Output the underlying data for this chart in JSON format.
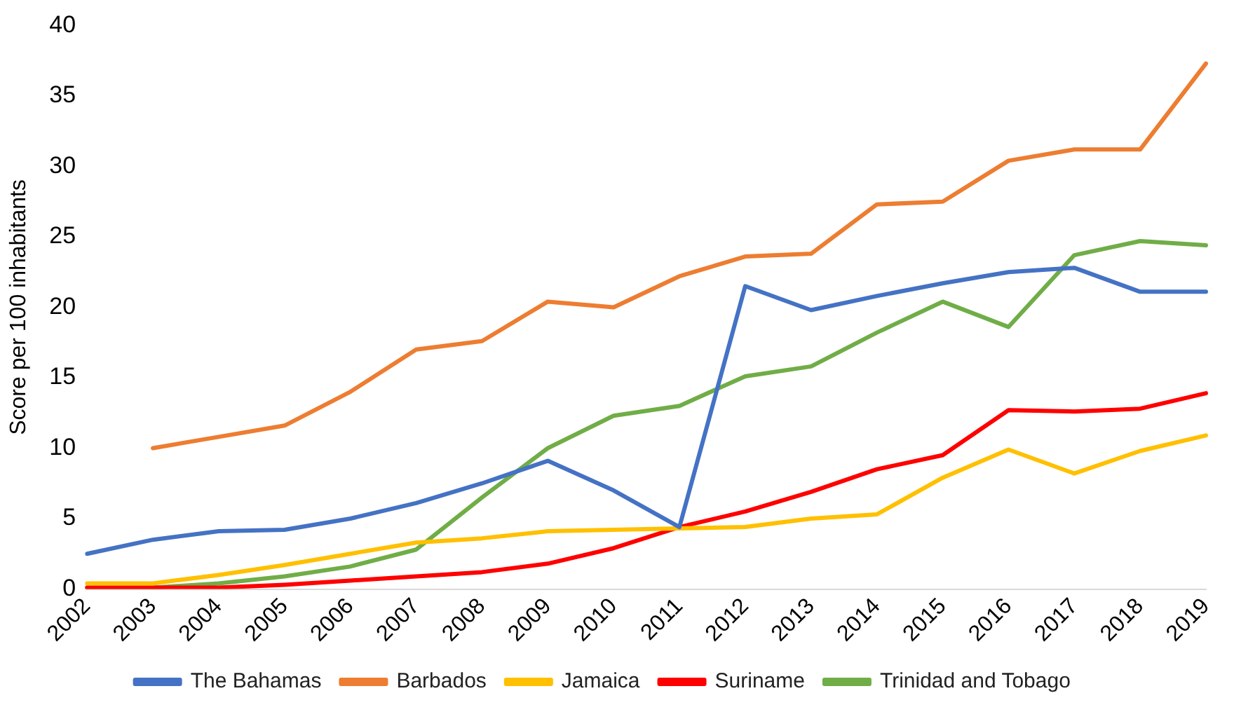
{
  "chart_data": {
    "type": "line",
    "ylabel": "Score per 100 inhabitants",
    "categories": [
      "2002",
      "2003",
      "2004",
      "2005",
      "2006",
      "2007",
      "2008",
      "2009",
      "2010",
      "2011",
      "2012",
      "2013",
      "2014",
      "2015",
      "2016",
      "2017",
      "2018",
      "2019"
    ],
    "ylim": [
      0,
      40
    ],
    "yticks": [
      0,
      5,
      10,
      15,
      20,
      25,
      30,
      35,
      40
    ],
    "grid": false,
    "legend": "bottom",
    "marker": "none",
    "line_style": "solid",
    "series": [
      {
        "name": "The Bahamas",
        "color": "#4472c4",
        "values": [
          2.5,
          3.5,
          4.1,
          4.2,
          5.0,
          6.1,
          7.5,
          9.1,
          7.0,
          4.4,
          21.5,
          19.8,
          20.8,
          21.7,
          22.5,
          22.8,
          21.1,
          21.1
        ]
      },
      {
        "name": "Barbados",
        "color": "#ed7d31",
        "values": [
          null,
          10.0,
          10.8,
          11.6,
          14.0,
          17.0,
          17.6,
          20.4,
          20.0,
          22.2,
          23.6,
          23.8,
          27.3,
          27.5,
          30.4,
          31.2,
          31.2,
          37.3
        ]
      },
      {
        "name": "Jamaica",
        "color": "#ffc000",
        "values": [
          0.4,
          0.4,
          1.0,
          1.7,
          2.5,
          3.3,
          3.6,
          4.1,
          4.2,
          4.3,
          4.4,
          5.0,
          5.3,
          7.9,
          9.9,
          8.2,
          9.8,
          10.9
        ]
      },
      {
        "name": "Suriname",
        "color": "#ff0000",
        "values": [
          0.1,
          0.1,
          0.1,
          0.3,
          0.6,
          0.9,
          1.2,
          1.8,
          2.9,
          4.4,
          5.5,
          6.9,
          8.5,
          9.5,
          12.7,
          12.6,
          12.8,
          13.9
        ]
      },
      {
        "name": "Trinidad and Tobago",
        "color": "#70ad47",
        "values": [
          0.1,
          0.1,
          0.4,
          0.9,
          1.6,
          2.8,
          6.5,
          10.0,
          12.3,
          13.0,
          15.1,
          15.8,
          18.2,
          20.4,
          18.6,
          23.7,
          24.7,
          24.4
        ]
      }
    ]
  }
}
